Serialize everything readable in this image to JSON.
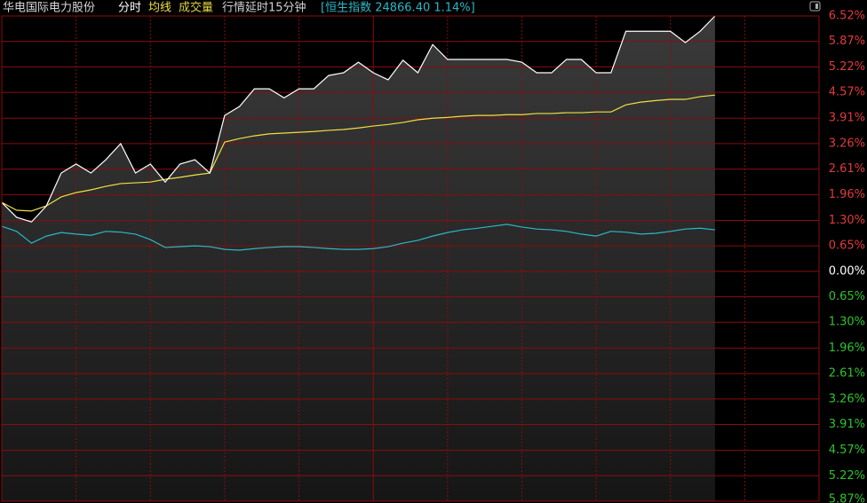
{
  "header": {
    "stock": "华电国际电力股份",
    "volume": "成交量",
    "delay": "行情延时15分钟",
    "index_quote": "[恒生指数 24866.40 1.14%]"
  },
  "chart_data": {
    "type": "line",
    "xlim": [
      0,
      330
    ],
    "ylim": [
      -5.87,
      6.52
    ],
    "yticks": [
      {
        "value": 6.52,
        "label": "6.52%"
      },
      {
        "value": 5.87,
        "label": "5.87%"
      },
      {
        "value": 5.22,
        "label": "5.22%"
      },
      {
        "value": 4.57,
        "label": "4.57%"
      },
      {
        "value": 3.91,
        "label": "3.91%"
      },
      {
        "value": 3.26,
        "label": "3.26%"
      },
      {
        "value": 2.61,
        "label": "2.61%"
      },
      {
        "value": 1.96,
        "label": "1.96%"
      },
      {
        "value": 1.3,
        "label": "1.30%"
      },
      {
        "value": 0.65,
        "label": "0.65%"
      },
      {
        "value": 0,
        "label": "0.00%"
      },
      {
        "value": -0.65,
        "label": "0.65%"
      },
      {
        "value": -1.3,
        "label": "1.30%"
      },
      {
        "value": -1.96,
        "label": "1.96%"
      },
      {
        "value": -2.61,
        "label": "2.61%"
      },
      {
        "value": -3.26,
        "label": "3.26%"
      },
      {
        "value": -3.91,
        "label": "3.91%"
      },
      {
        "value": -4.57,
        "label": "4.57%"
      },
      {
        "value": -5.22,
        "label": "5.22%"
      },
      {
        "value": -5.87,
        "label": "5.87%"
      }
    ],
    "grid": true,
    "x": [
      0,
      6,
      12,
      18,
      24,
      30,
      36,
      42,
      48,
      54,
      60,
      66,
      72,
      78,
      84,
      90,
      96,
      102,
      108,
      114,
      120,
      126,
      132,
      138,
      144,
      150,
      156,
      162,
      168,
      174,
      180,
      186,
      192,
      198,
      204,
      210,
      216,
      222,
      228,
      234,
      240,
      246,
      252,
      258,
      264,
      270,
      276,
      282,
      288
    ],
    "series": [
      {
        "name": "分时",
        "color": "#ffffff",
        "area": true,
        "values": [
          1.76,
          1.38,
          1.26,
          1.67,
          2.51,
          2.74,
          2.51,
          2.85,
          3.26,
          2.51,
          2.74,
          2.28,
          2.74,
          2.85,
          2.51,
          3.98,
          4.21,
          4.66,
          4.66,
          4.43,
          4.66,
          4.66,
          5.0,
          5.07,
          5.34,
          5.07,
          4.89,
          5.39,
          5.07,
          5.79,
          5.41,
          5.41,
          5.41,
          5.41,
          5.41,
          5.34,
          5.07,
          5.07,
          5.41,
          5.41,
          5.07,
          5.07,
          6.13,
          6.13,
          6.13,
          6.13,
          5.84,
          6.13,
          6.52
        ]
      },
      {
        "name": "均线",
        "color": "#f0e040",
        "values": [
          1.76,
          1.56,
          1.54,
          1.67,
          1.9,
          2.01,
          2.08,
          2.17,
          2.24,
          2.26,
          2.28,
          2.35,
          2.4,
          2.46,
          2.51,
          3.3,
          3.39,
          3.46,
          3.51,
          3.53,
          3.55,
          3.57,
          3.6,
          3.62,
          3.66,
          3.71,
          3.75,
          3.8,
          3.87,
          3.91,
          3.93,
          3.96,
          3.98,
          3.98,
          4.0,
          4.0,
          4.03,
          4.03,
          4.05,
          4.05,
          4.07,
          4.07,
          4.25,
          4.32,
          4.36,
          4.39,
          4.39,
          4.46,
          4.5
        ]
      },
      {
        "color": "#2ab8c8",
        "values": [
          1.15,
          1.02,
          0.72,
          0.9,
          0.99,
          0.95,
          0.92,
          1.02,
          1.0,
          0.95,
          0.81,
          0.61,
          0.63,
          0.65,
          0.63,
          0.56,
          0.54,
          0.58,
          0.61,
          0.63,
          0.63,
          0.61,
          0.58,
          0.56,
          0.56,
          0.58,
          0.63,
          0.72,
          0.79,
          0.9,
          0.99,
          1.06,
          1.1,
          1.15,
          1.2,
          1.13,
          1.08,
          1.06,
          1.02,
          0.95,
          0.9,
          1.02,
          1.0,
          0.95,
          0.97,
          1.02,
          1.08,
          1.1,
          1.06
        ]
      }
    ]
  }
}
